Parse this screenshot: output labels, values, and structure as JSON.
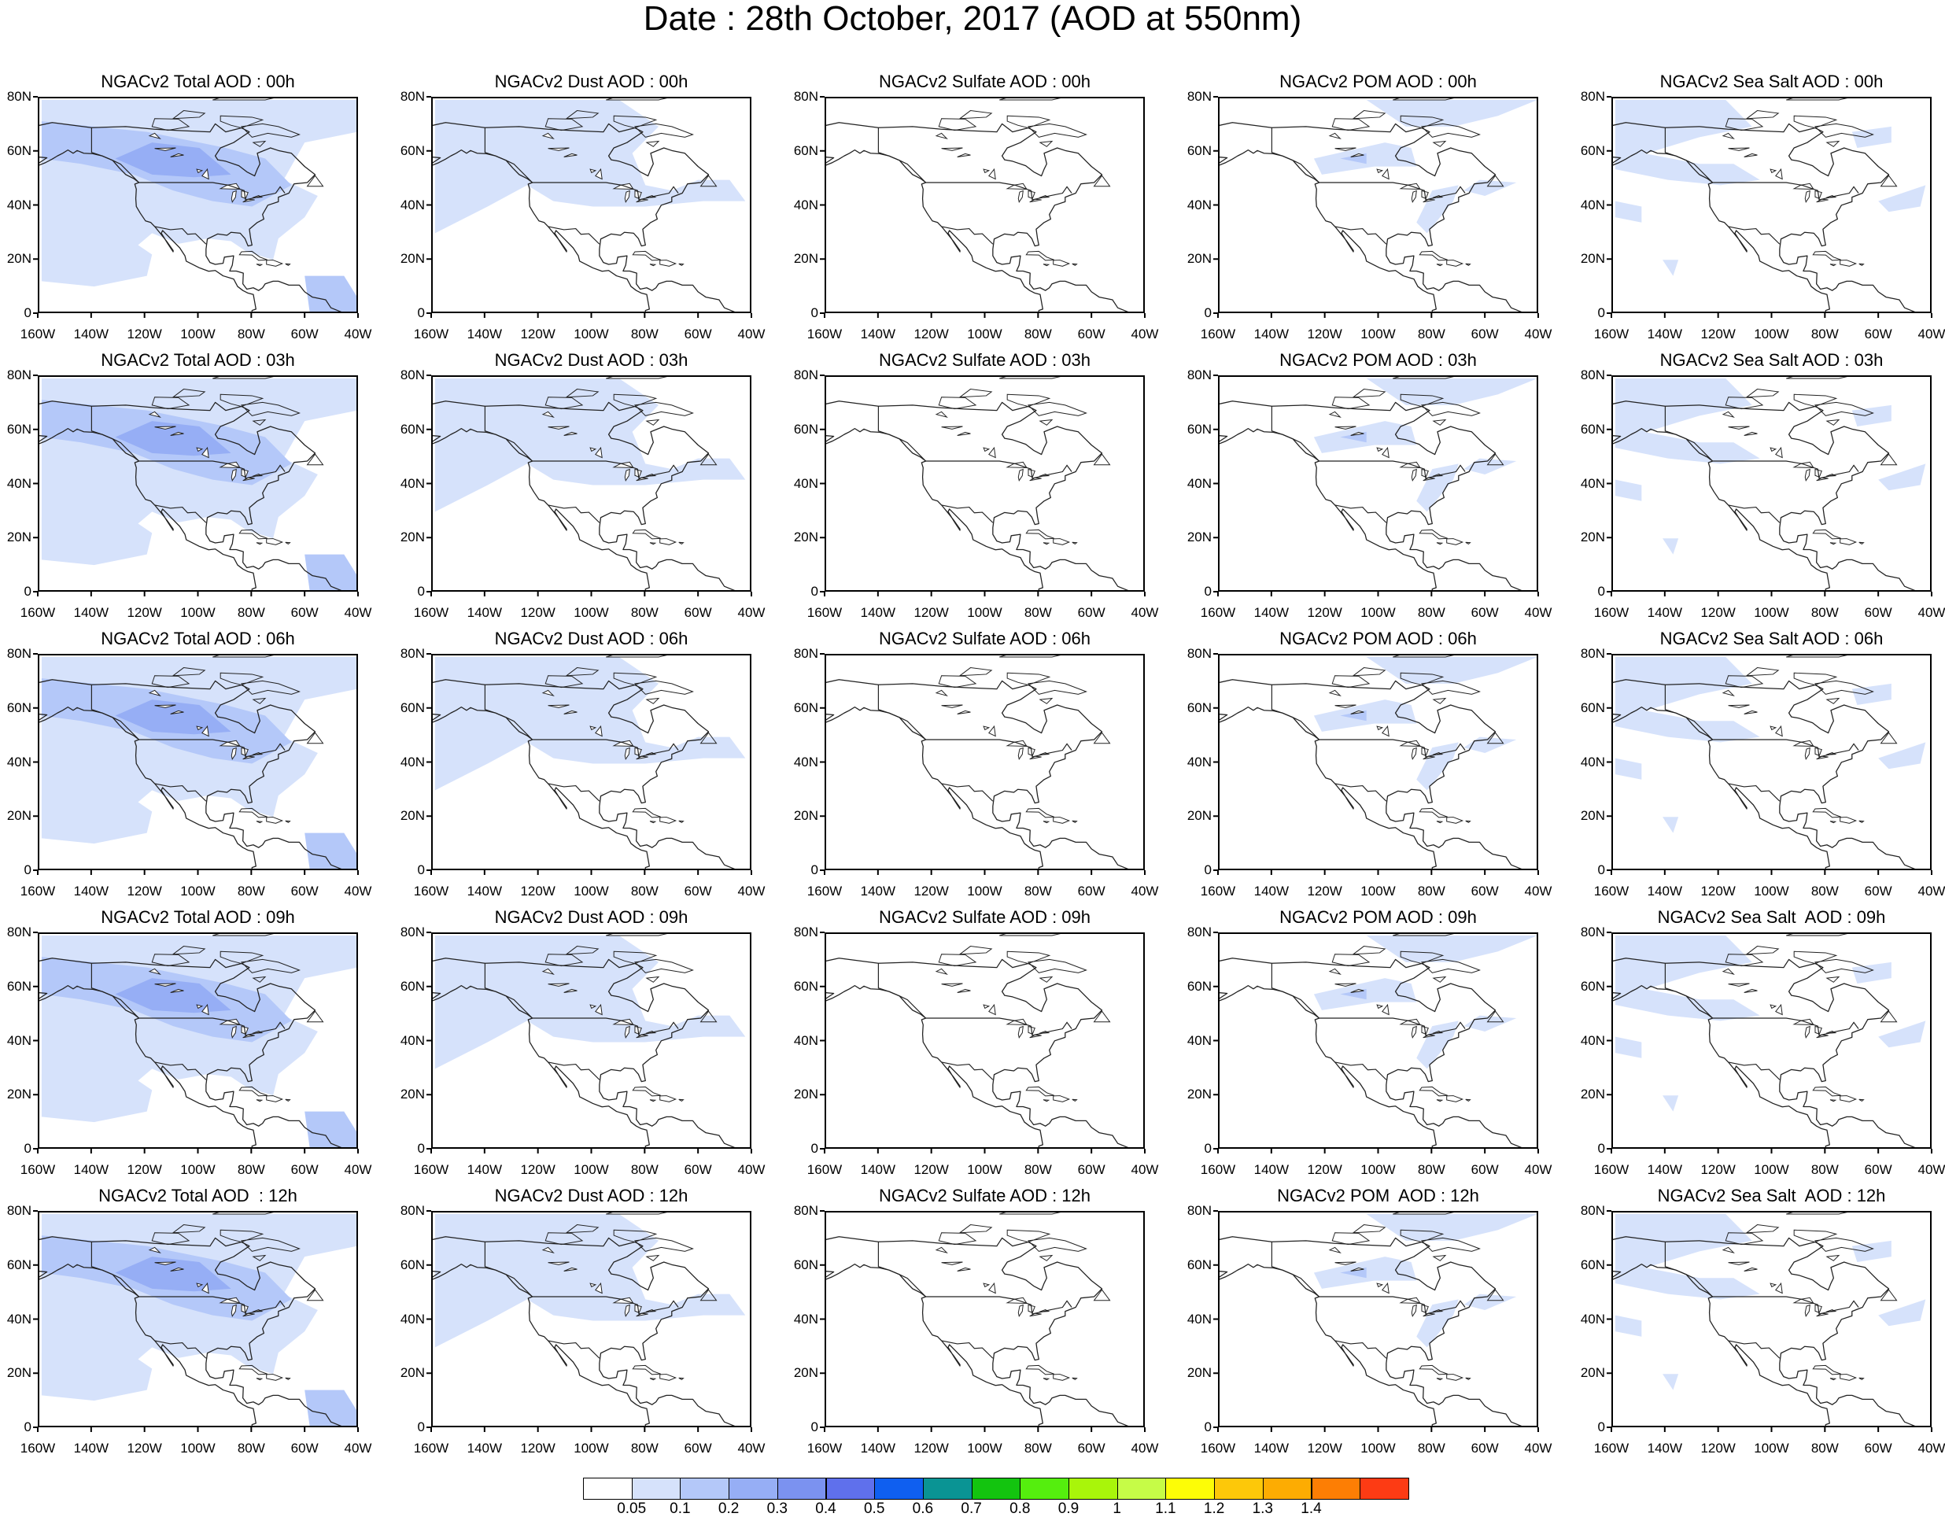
{
  "figure": {
    "title": "Date : 28th October, 2017 (AOD at 550nm)"
  },
  "axes": {
    "x_ticks": [
      "160W",
      "140W",
      "120W",
      "100W",
      "80W",
      "60W",
      "40W"
    ],
    "y_ticks": [
      "80N",
      "60N",
      "40N",
      "20N",
      "0"
    ],
    "lon_range": [
      -160,
      -40
    ],
    "lat_range": [
      0,
      80
    ]
  },
  "panels": [
    [
      "NGACv2 Total AOD : 00h",
      "NGACv2 Dust AOD : 00h",
      "NGACv2 Sulfate AOD : 00h",
      "NGACv2 POM AOD : 00h",
      "NGACv2 Sea Salt AOD : 00h"
    ],
    [
      "NGACv2 Total AOD : 03h",
      "NGACv2 Dust AOD : 03h",
      "NGACv2 Sulfate AOD : 03h",
      "NGACv2 POM AOD : 03h",
      "NGACv2 Sea Salt AOD : 03h"
    ],
    [
      "NGACv2 Total AOD : 06h",
      "NGACv2 Dust AOD : 06h",
      "NGACv2 Sulfate AOD : 06h",
      "NGACv2 POM AOD : 06h",
      "NGACv2 Sea Salt AOD : 06h"
    ],
    [
      "NGACv2 Total AOD : 09h",
      "NGACv2 Dust AOD : 09h",
      "NGACv2 Sulfate AOD : 09h",
      "NGACv2 POM AOD : 09h",
      "NGACv2 Sea Salt  AOD : 09h"
    ],
    [
      "NGACv2 Total AOD  : 12h",
      "NGACv2 Dust AOD : 12h",
      "NGACv2 Sulfate AOD : 12h",
      "NGACv2 POM  AOD : 12h",
      "NGACv2 Sea Salt  AOD : 12h"
    ]
  ],
  "colorbar": {
    "labels": [
      "0.05",
      "0.1",
      "0.2",
      "0.3",
      "0.4",
      "0.5",
      "0.6",
      "0.7",
      "0.8",
      "0.9",
      "1",
      "1.1",
      "1.2",
      "1.3",
      "1.4"
    ],
    "colors": [
      "#ffffff",
      "#d6e2fb",
      "#b4c8f9",
      "#96aef5",
      "#7b92f0",
      "#5f70ec",
      "#0f5ff0",
      "#0a9494",
      "#13c40f",
      "#55ee0e",
      "#a9f50a",
      "#c6fc47",
      "#fdfd06",
      "#fdc809",
      "#fdac02",
      "#fd7e04",
      "#fd3b14"
    ]
  },
  "chart_data": {
    "type": "heatmap",
    "title": "Date : 28th October, 2017 (AOD at 550nm)",
    "rows_forecast_hour": [
      "00h",
      "03h",
      "06h",
      "09h",
      "12h"
    ],
    "columns_species": [
      "Total",
      "Dust",
      "Sulfate",
      "POM",
      "Sea Salt"
    ],
    "approx_max_aod": [
      [
        0.3,
        0.1,
        0.05,
        0.2,
        0.2
      ],
      [
        0.3,
        0.1,
        0.05,
        0.2,
        0.2
      ],
      [
        0.3,
        0.1,
        0.05,
        0.2,
        0.2
      ],
      [
        0.3,
        0.1,
        0.05,
        0.2,
        0.2
      ],
      [
        0.3,
        0.1,
        0.05,
        0.2,
        0.2
      ]
    ],
    "colorbar_levels": [
      0.05,
      0.1,
      0.2,
      0.3,
      0.4,
      0.5,
      0.6,
      0.7,
      0.8,
      0.9,
      1,
      1.1,
      1.2,
      1.3,
      1.4
    ]
  }
}
